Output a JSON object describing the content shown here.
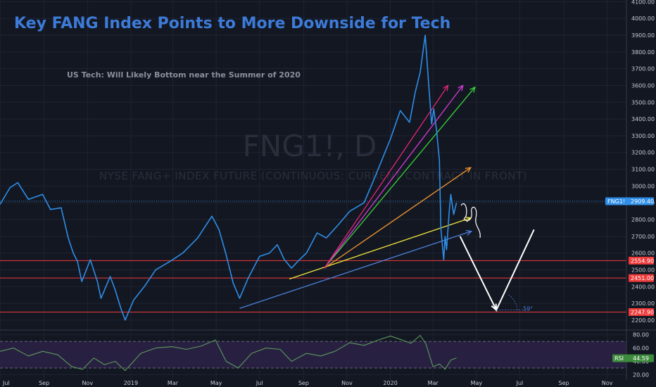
{
  "title": "Key FANG Index Points to More Downside for Tech",
  "subtitle": "US Tech: Will Likely Bottom near the Summer of 2020",
  "watermark": {
    "symbol": "FNG1!, D",
    "description": "NYSE FANG+ INDEX FUTURE (CONTINUOUS: CURRENT CONTRACT IN FRONT)"
  },
  "colors": {
    "background": "#131722",
    "price_line": "#2e8ee8",
    "rsi_line": "#5b9a5b",
    "rsi_band": "#2b2145",
    "support": "#ef3b3b",
    "title": "#3d7bd8",
    "annotation": "#ffffff"
  },
  "chart_data": [
    {
      "type": "line",
      "name": "price",
      "y_axis_ticks": [
        2200,
        2300,
        2400,
        2500,
        2600,
        2700,
        2800,
        2900,
        3000,
        3100,
        3200,
        3300,
        3400,
        3500,
        3600,
        3700,
        3800,
        3900,
        4000,
        4100
      ],
      "y_axis_tick_labels": [
        "2200.00",
        "2300.00",
        "2400.00",
        "2500.00",
        "2600.00",
        "2700.00",
        "2800.00",
        "2900.00",
        "3000.00",
        "3100.00",
        "3200.00",
        "3300.00",
        "3400.00",
        "3500.00",
        "3600.00",
        "3700.00",
        "3800.00",
        "3900.00",
        "4000.00",
        "4100.00"
      ],
      "ylim": [
        2145,
        4110
      ],
      "x_axis_ticks": [
        "Jul",
        "Sep",
        "Nov",
        "2019",
        "Mar",
        "May",
        "Jul",
        "Sep",
        "Nov",
        "2020",
        "Mar",
        "May",
        "Jul",
        "Sep",
        "Nov"
      ],
      "x_axis_tick_positions": [
        "2018-07-01",
        "2018-09-01",
        "2018-11-01",
        "2019-01-01",
        "2019-03-01",
        "2019-05-01",
        "2019-07-01",
        "2019-09-01",
        "2019-11-01",
        "2020-01-01",
        "2020-03-01",
        "2020-05-01",
        "2020-07-01",
        "2020-09-01",
        "2020-11-01"
      ],
      "xlim": [
        "2018-07-01",
        "2020-11-28"
      ],
      "series": [
        {
          "x": [
            "2018-07-01",
            "2018-07-15",
            "2018-07-26",
            "2018-08-10",
            "2018-08-30",
            "2018-09-10",
            "2018-09-25",
            "2018-10-05",
            "2018-10-12",
            "2018-10-18",
            "2018-10-24",
            "2018-11-05",
            "2018-11-15",
            "2018-11-20",
            "2018-12-03",
            "2018-12-10",
            "2018-12-18",
            "2018-12-24",
            "2019-01-05",
            "2019-01-20",
            "2019-02-05",
            "2019-02-25",
            "2019-03-15",
            "2019-04-05",
            "2019-04-25",
            "2019-05-05",
            "2019-05-15",
            "2019-05-25",
            "2019-06-03",
            "2019-06-15",
            "2019-07-01",
            "2019-07-15",
            "2019-07-26",
            "2019-08-05",
            "2019-08-15",
            "2019-08-26",
            "2019-09-05",
            "2019-09-20",
            "2019-10-03",
            "2019-10-20",
            "2019-11-05",
            "2019-11-25",
            "2019-12-10",
            "2020-01-01",
            "2020-01-15",
            "2020-01-28",
            "2020-02-05",
            "2020-02-12",
            "2020-02-19",
            "2020-02-24",
            "2020-02-28",
            "2020-03-02",
            "2020-03-06",
            "2020-03-10",
            "2020-03-12",
            "2020-03-16",
            "2020-03-18",
            "2020-03-20",
            "2020-03-24",
            "2020-03-26",
            "2020-03-30",
            "2020-04-03"
          ],
          "y": [
            2890,
            2990,
            3020,
            2920,
            2950,
            2860,
            2870,
            2690,
            2600,
            2550,
            2430,
            2560,
            2430,
            2330,
            2460,
            2380,
            2270,
            2200,
            2320,
            2400,
            2500,
            2550,
            2600,
            2690,
            2820,
            2740,
            2590,
            2420,
            2330,
            2450,
            2580,
            2600,
            2650,
            2560,
            2510,
            2560,
            2600,
            2720,
            2690,
            2770,
            2850,
            2900,
            3050,
            3280,
            3450,
            3380,
            3560,
            3680,
            3900,
            3600,
            3370,
            3460,
            3330,
            3150,
            2750,
            2560,
            2700,
            2620,
            2860,
            2950,
            2830,
            2900
          ]
        }
      ],
      "horizontal_levels": [
        {
          "value": 2554.9,
          "label": "2554.90"
        },
        {
          "value": 2451.0,
          "label": "2451.00"
        },
        {
          "value": 2247.9,
          "label": "2247.90"
        }
      ],
      "last_value": {
        "symbol": "FNG1!",
        "label": "2909.40",
        "value": 2909.4
      },
      "trend_lines": [
        {
          "color": "#4d7fd8",
          "from": {
            "x": "2019-06-03",
            "y": 2270
          },
          "to": {
            "x": "2020-04-24",
            "y": 2730
          }
        },
        {
          "color": "#f2e73c",
          "from": {
            "x": "2019-08-12",
            "y": 2445
          },
          "to": {
            "x": "2020-04-23",
            "y": 2810
          }
        },
        {
          "color": "#f2962e",
          "from": {
            "x": "2019-09-30",
            "y": 2510
          },
          "to": {
            "x": "2020-04-23",
            "y": 3110
          }
        },
        {
          "color": "#3bd33b",
          "from": {
            "x": "2019-09-30",
            "y": 2510
          },
          "to": {
            "x": "2020-04-29",
            "y": 3590
          }
        },
        {
          "color": "#d43bd4",
          "from": {
            "x": "2019-09-30",
            "y": 2510
          },
          "to": {
            "x": "2020-04-12",
            "y": 3600
          }
        },
        {
          "color": "#e6257a",
          "from": {
            "x": "2019-09-30",
            "y": 2510
          },
          "to": {
            "x": "2020-03-22",
            "y": 3600
          }
        }
      ],
      "projection": {
        "color": "#ffffff",
        "points": [
          {
            "x": "2020-04-08",
            "y": 2700
          },
          {
            "x": "2020-05-29",
            "y": 2260
          },
          {
            "x": "2020-07-21",
            "y": 2740
          }
        ],
        "angle_label": "59°"
      }
    },
    {
      "type": "line",
      "name": "RSI",
      "y_axis_ticks": [
        20,
        40,
        60,
        80
      ],
      "y_axis_tick_labels": [
        "20.00",
        "40.00",
        "60.00",
        "80.00"
      ],
      "ylim": [
        12,
        86
      ],
      "band": [
        30,
        70
      ],
      "last_value": {
        "symbol": "RSI",
        "label": "44.59",
        "value": 44.59
      },
      "series": [
        {
          "x": [
            "2018-07-01",
            "2018-07-20",
            "2018-08-10",
            "2018-08-30",
            "2018-09-20",
            "2018-10-10",
            "2018-10-25",
            "2018-11-10",
            "2018-11-25",
            "2018-12-10",
            "2018-12-24",
            "2019-01-15",
            "2019-02-05",
            "2019-02-28",
            "2019-03-20",
            "2019-04-10",
            "2019-04-30",
            "2019-05-15",
            "2019-06-01",
            "2019-06-20",
            "2019-07-10",
            "2019-07-30",
            "2019-08-15",
            "2019-09-05",
            "2019-09-25",
            "2019-10-15",
            "2019-11-05",
            "2019-11-25",
            "2019-12-15",
            "2020-01-01",
            "2020-01-15",
            "2020-01-30",
            "2020-02-12",
            "2020-02-20",
            "2020-03-01",
            "2020-03-10",
            "2020-03-18",
            "2020-03-26",
            "2020-04-03"
          ],
          "y": [
            55,
            60,
            48,
            55,
            50,
            32,
            28,
            45,
            35,
            40,
            26,
            52,
            60,
            62,
            58,
            63,
            72,
            40,
            30,
            52,
            60,
            58,
            40,
            52,
            48,
            55,
            68,
            64,
            72,
            78,
            73,
            67,
            79,
            66,
            32,
            36,
            28,
            42,
            45
          ]
        }
      ]
    }
  ]
}
